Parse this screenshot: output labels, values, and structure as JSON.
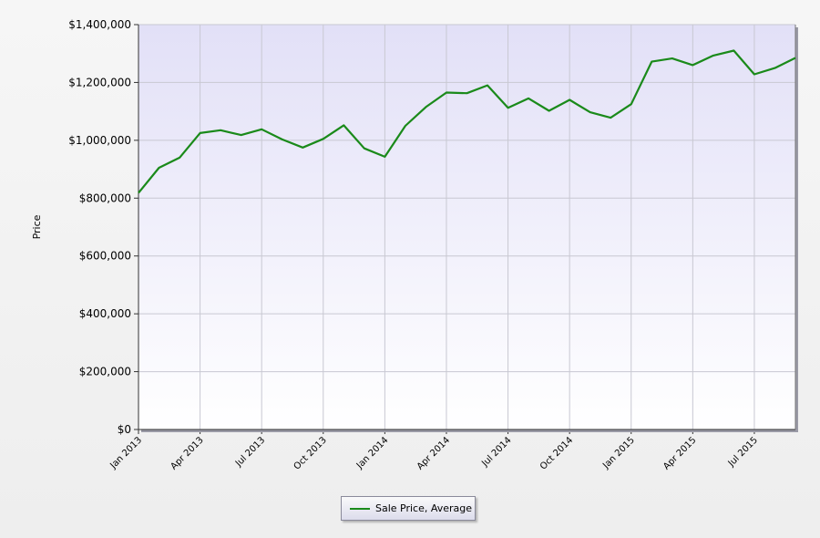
{
  "chart_data": {
    "type": "line",
    "ylabel": "Price",
    "xlabel": "",
    "ylim": [
      0,
      1400000
    ],
    "y_ticks": [
      "$0",
      "$200,000",
      "$400,000",
      "$600,000",
      "$800,000",
      "$1,000,000",
      "$1,200,000",
      "$1,400,000"
    ],
    "y_tick_values": [
      0,
      200000,
      400000,
      600000,
      800000,
      1000000,
      1200000,
      1400000
    ],
    "x_ticks": [
      "Jan 2013",
      "Apr 2013",
      "Jul 2013",
      "Oct 2013",
      "Jan 2014",
      "Apr 2014",
      "Jul 2014",
      "Oct 2014",
      "Jan 2015",
      "Apr 2015",
      "Jul 2015"
    ],
    "x_tick_months": [
      0,
      3,
      6,
      9,
      12,
      15,
      18,
      21,
      24,
      27,
      30
    ],
    "x_range_months": [
      0,
      32
    ],
    "x": [
      "Jan 2013",
      "Feb 2013",
      "Mar 2013",
      "Apr 2013",
      "May 2013",
      "Jun 2013",
      "Jul 2013",
      "Aug 2013",
      "Sep 2013",
      "Oct 2013",
      "Nov 2013",
      "Dec 2013",
      "Jan 2014",
      "Feb 2014",
      "Mar 2014",
      "Apr 2014",
      "May 2014",
      "Jun 2014",
      "Jul 2014",
      "Aug 2014",
      "Sep 2014",
      "Oct 2014",
      "Nov 2014",
      "Dec 2014",
      "Jan 2015",
      "Feb 2015",
      "Mar 2015",
      "Apr 2015",
      "May 2015",
      "Jun 2015",
      "Jul 2015",
      "Aug 2015",
      "Sep 2015"
    ],
    "series": [
      {
        "name": "Sale Price, Average",
        "color": "#1a8a1a",
        "values": [
          818000,
          905000,
          940000,
          1025000,
          1035000,
          1018000,
          1038000,
          1003000,
          975000,
          1005000,
          1052000,
          972000,
          943000,
          1050000,
          1115000,
          1165000,
          1163000,
          1190000,
          1112000,
          1145000,
          1102000,
          1140000,
          1097000,
          1078000,
          1125000,
          1272000,
          1283000,
          1260000,
          1293000,
          1310000,
          1228000,
          1250000,
          1285000
        ]
      }
    ],
    "grid": true,
    "legend_position": "bottom-center",
    "plot_background": "gradient lavender to white"
  },
  "legend": {
    "label": "Sale Price, Average"
  }
}
